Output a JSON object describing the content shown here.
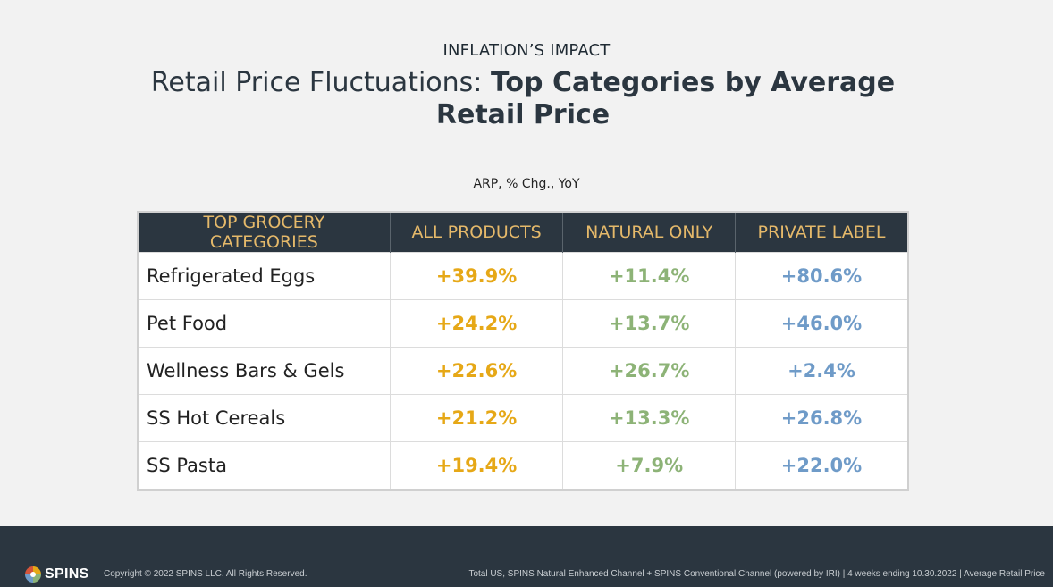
{
  "header": {
    "eyebrow": "INFLATION’S IMPACT",
    "title_regular": "Retail Price Fluctuations: ",
    "title_bold": "Top Categories by Average Retail Price",
    "subtitle": "ARP, % Chg., YoY"
  },
  "chart_data": {
    "type": "table",
    "columns": [
      "TOP GROCERY CATEGORIES",
      "ALL PRODUCTS",
      "NATURAL ONLY",
      "PRIVATE LABEL"
    ],
    "rows": [
      {
        "category": "Refrigerated Eggs",
        "all": "+39.9%",
        "natural": "+11.4%",
        "private": "+80.6%"
      },
      {
        "category": "Pet Food",
        "all": "+24.2%",
        "natural": "+13.7%",
        "private": "+46.0%"
      },
      {
        "category": "Wellness Bars & Gels",
        "all": "+22.6%",
        "natural": "+26.7%",
        "private": "+2.4%"
      },
      {
        "category": "SS Hot Cereals",
        "all": "+21.2%",
        "natural": "+13.3%",
        "private": "+26.8%"
      },
      {
        "category": "SS Pasta",
        "all": "+19.4%",
        "natural": "+7.9%",
        "private": "+22.0%"
      }
    ],
    "colors": {
      "all_products": "#e6a817",
      "natural_only": "#8db377",
      "private_label": "#6f9bc8",
      "header_bg": "#2b3640",
      "header_text": "#e5b96a"
    }
  },
  "footer": {
    "logo_text": "SPINS",
    "logo_icon": "spins-logo-icon",
    "copyright": "Copyright © 2022 SPINS LLC. All Rights Reserved.",
    "source": "Total US, SPINS Natural Enhanced Channel + SPINS Conventional Channel (powered by IRI) | 4 weeks ending 10.30.2022 | Average Retail Price"
  }
}
